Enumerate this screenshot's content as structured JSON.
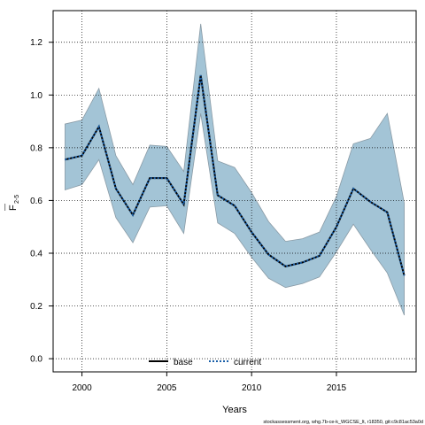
{
  "chart_data": {
    "type": "line",
    "xlabel": "Years",
    "ylabel_main": "F",
    "ylabel_sub": "2-5",
    "xlim": [
      1998.3,
      2019.7
    ],
    "ylim": [
      -0.05,
      1.32
    ],
    "xticks": [
      2000,
      2005,
      2010,
      2015
    ],
    "yticks": [
      0.0,
      0.2,
      0.4,
      0.6,
      0.8,
      1.0,
      1.2
    ],
    "ytick_labels": [
      "0.0",
      "0.2",
      "0.4",
      "0.6",
      "0.8",
      "1.0",
      "1.2"
    ],
    "grid": true,
    "legend_position": "bottom",
    "x": [
      1999,
      2000,
      2001,
      2002,
      2003,
      2004,
      2005,
      2006,
      2007,
      2008,
      2009,
      2010,
      2011,
      2012,
      2013,
      2014,
      2015,
      2016,
      2017,
      2018,
      2019
    ],
    "series": [
      {
        "name": "base",
        "style": "solid",
        "color": "#000000",
        "values": [
          0.755,
          0.77,
          0.88,
          0.645,
          0.545,
          0.685,
          0.685,
          0.585,
          1.075,
          0.62,
          0.58,
          0.48,
          0.395,
          0.35,
          0.365,
          0.39,
          0.5,
          0.645,
          0.595,
          0.555,
          0.315
        ]
      },
      {
        "name": "current",
        "style": "dotted",
        "color": "#1a5fa8",
        "values": [
          0.755,
          0.77,
          0.88,
          0.645,
          0.545,
          0.685,
          0.685,
          0.585,
          1.075,
          0.62,
          0.58,
          0.48,
          0.395,
          0.35,
          0.365,
          0.39,
          0.5,
          0.645,
          0.595,
          0.555,
          0.315
        ]
      }
    ],
    "band": {
      "color": "#a3c4d6",
      "edge_color": "#8a9ba6",
      "upper": [
        0.89,
        0.905,
        1.025,
        0.77,
        0.66,
        0.81,
        0.805,
        0.71,
        1.27,
        0.75,
        0.725,
        0.63,
        0.52,
        0.445,
        0.455,
        0.48,
        0.615,
        0.815,
        0.835,
        0.93,
        0.59
      ],
      "lower": [
        0.64,
        0.66,
        0.755,
        0.535,
        0.44,
        0.575,
        0.58,
        0.475,
        0.93,
        0.515,
        0.475,
        0.385,
        0.305,
        0.27,
        0.285,
        0.31,
        0.405,
        0.51,
        0.415,
        0.325,
        0.165
      ]
    }
  },
  "footer": "stockassessment.org, whg.7b-ce-k_WGCSE_lt, r18350, git:c9c81ac53a0d"
}
